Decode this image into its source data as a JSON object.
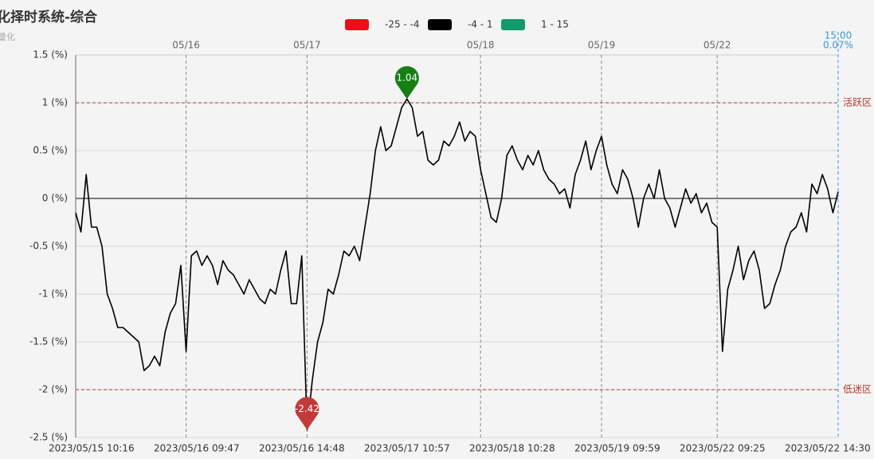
{
  "chart_data": {
    "type": "line",
    "title": "化择时系统-综合",
    "subtitle": "量化",
    "categories": [
      null,
      null,
      null,
      "2023/05/15 10:16",
      null,
      null,
      null,
      null,
      null,
      null,
      null,
      null,
      null,
      null,
      null,
      null,
      null,
      null,
      null,
      null,
      null,
      null,
      null,
      "2023/05/16 09:47",
      null,
      null,
      null,
      null,
      null,
      null,
      null,
      null,
      null,
      null,
      null,
      null,
      null,
      null,
      null,
      null,
      null,
      null,
      null,
      "2023/05/16 14:48",
      null,
      null,
      null,
      null,
      null,
      null,
      null,
      null,
      null,
      null,
      null,
      null,
      null,
      null,
      null,
      null,
      null,
      null,
      null,
      "2023/05/17 10:57",
      null,
      null,
      null,
      null,
      null,
      null,
      null,
      null,
      null,
      null,
      null,
      null,
      null,
      null,
      null,
      null,
      null,
      null,
      null,
      "2023/05/18 10:28",
      null,
      null,
      null,
      null,
      null,
      null,
      null,
      null,
      null,
      null,
      null,
      null,
      null,
      null,
      null,
      null,
      null,
      null,
      null,
      "2023/05/19 09:59",
      null,
      null,
      null,
      null,
      null,
      null,
      null,
      null,
      null,
      null,
      null,
      null,
      null,
      null,
      null,
      null,
      null,
      null,
      null,
      "2023/05/22 09:25",
      null,
      null,
      null,
      null,
      null,
      null,
      null,
      null,
      null,
      null,
      null,
      null,
      null,
      null,
      null,
      null,
      null,
      null,
      null,
      "2023/05/22 14:30",
      null,
      null
    ],
    "top_categories": [
      null,
      null,
      null,
      null,
      null,
      null,
      null,
      null,
      null,
      null,
      null,
      null,
      null,
      null,
      null,
      null,
      null,
      null,
      null,
      null,
      null,
      "05/16",
      null,
      null,
      null,
      null,
      null,
      null,
      null,
      null,
      null,
      null,
      null,
      null,
      null,
      null,
      null,
      null,
      null,
      null,
      null,
      null,
      null,
      null,
      "05/17",
      null,
      null,
      null,
      null,
      null,
      null,
      null,
      null,
      null,
      null,
      null,
      null,
      null,
      null,
      null,
      null,
      null,
      null,
      null,
      null,
      null,
      null,
      null,
      null,
      null,
      null,
      null,
      null,
      null,
      null,
      null,
      null,
      "05/18",
      null,
      null,
      null,
      null,
      null,
      null,
      null,
      null,
      null,
      null,
      null,
      null,
      null,
      null,
      null,
      null,
      null,
      null,
      null,
      null,
      null,
      null,
      "05/19",
      null,
      null,
      null,
      null,
      null,
      null,
      null,
      null,
      null,
      null,
      null,
      null,
      null,
      null,
      null,
      null,
      null,
      null,
      null,
      null,
      null,
      "05/22",
      null,
      null,
      null,
      null,
      null,
      null,
      null,
      null,
      null,
      null,
      null,
      null,
      null,
      null,
      null,
      null,
      null,
      null,
      null,
      null,
      null,
      null,
      null
    ],
    "series": [
      {
        "name": "综合",
        "color": "#000000",
        "values": [
          -0.15,
          -0.35,
          0.25,
          -0.3,
          -0.3,
          -0.5,
          -1.0,
          -1.15,
          -1.35,
          -1.35,
          -1.4,
          -1.45,
          -1.5,
          -1.8,
          -1.75,
          -1.65,
          -1.75,
          -1.4,
          -1.2,
          -1.1,
          -0.7,
          -1.6,
          -0.6,
          -0.55,
          -0.7,
          -0.6,
          -0.7,
          -0.9,
          -0.65,
          -0.75,
          -0.8,
          -0.9,
          -1.0,
          -0.85,
          -0.95,
          -1.05,
          -1.1,
          -0.95,
          -1.0,
          -0.75,
          -0.55,
          -1.1,
          -1.1,
          -0.6,
          -2.42,
          -1.9,
          -1.5,
          -1.3,
          -0.95,
          -1.0,
          -0.8,
          -0.55,
          -0.6,
          -0.5,
          -0.65,
          -0.3,
          0.05,
          0.5,
          0.75,
          0.5,
          0.55,
          0.75,
          0.95,
          1.04,
          0.95,
          0.65,
          0.7,
          0.4,
          0.35,
          0.4,
          0.6,
          0.55,
          0.65,
          0.8,
          0.6,
          0.7,
          0.65,
          0.3,
          0.05,
          -0.2,
          -0.25,
          0.0,
          0.45,
          0.55,
          0.4,
          0.3,
          0.45,
          0.35,
          0.5,
          0.3,
          0.2,
          0.15,
          0.05,
          0.1,
          -0.1,
          0.25,
          0.4,
          0.6,
          0.3,
          0.5,
          0.65,
          0.35,
          0.15,
          0.05,
          0.3,
          0.2,
          0.0,
          -0.3,
          0.0,
          0.15,
          0.0,
          0.3,
          0.0,
          -0.1,
          -0.3,
          -0.1,
          0.1,
          -0.05,
          0.05,
          -0.15,
          -0.05,
          -0.25,
          -0.3,
          -1.6,
          -0.95,
          -0.75,
          -0.5,
          -0.85,
          -0.65,
          -0.55,
          -0.75,
          -1.15,
          -1.1,
          -0.9,
          -0.75,
          -0.5,
          -0.35,
          -0.3,
          -0.15,
          -0.35,
          0.15,
          0.05,
          0.25,
          0.1,
          -0.15,
          0.07
        ]
      }
    ],
    "ylim": [
      -2.5,
      1.5
    ],
    "yticks": [
      {
        "value": 1.5,
        "label": "1.5 (%)"
      },
      {
        "value": 1,
        "label": "1 (%)"
      },
      {
        "value": 0.5,
        "label": "0.5 (%)"
      },
      {
        "value": 0,
        "label": "0 (%)"
      },
      {
        "value": -0.5,
        "label": "-0.5 (%)"
      },
      {
        "value": -1,
        "label": "-1 (%)"
      },
      {
        "value": -1.5,
        "label": "-1.5 (%)"
      },
      {
        "value": -2,
        "label": "-2 (%)"
      },
      {
        "value": -2.5,
        "label": "-2.5 (%)"
      }
    ],
    "grid": true,
    "legend": [
      {
        "label": "-25 - -4",
        "color": "#e8101a"
      },
      {
        "label": "-4 - 1",
        "color": "#000000"
      },
      {
        "label": "1 - 15",
        "color": "#129a6c"
      }
    ],
    "mark_lines": [
      {
        "value": 1,
        "label": "活跃区",
        "color": "#b03a2e"
      },
      {
        "value": -2,
        "label": "低迷区",
        "color": "#b03a2e"
      }
    ],
    "mark_points": [
      {
        "value": 1.04,
        "color": "#157f15"
      },
      {
        "value": -2.42,
        "color": "#c23a3a"
      }
    ],
    "pointer": {
      "label": "15:00",
      "value_label": "0.07%",
      "color": "#3a98d8"
    }
  }
}
